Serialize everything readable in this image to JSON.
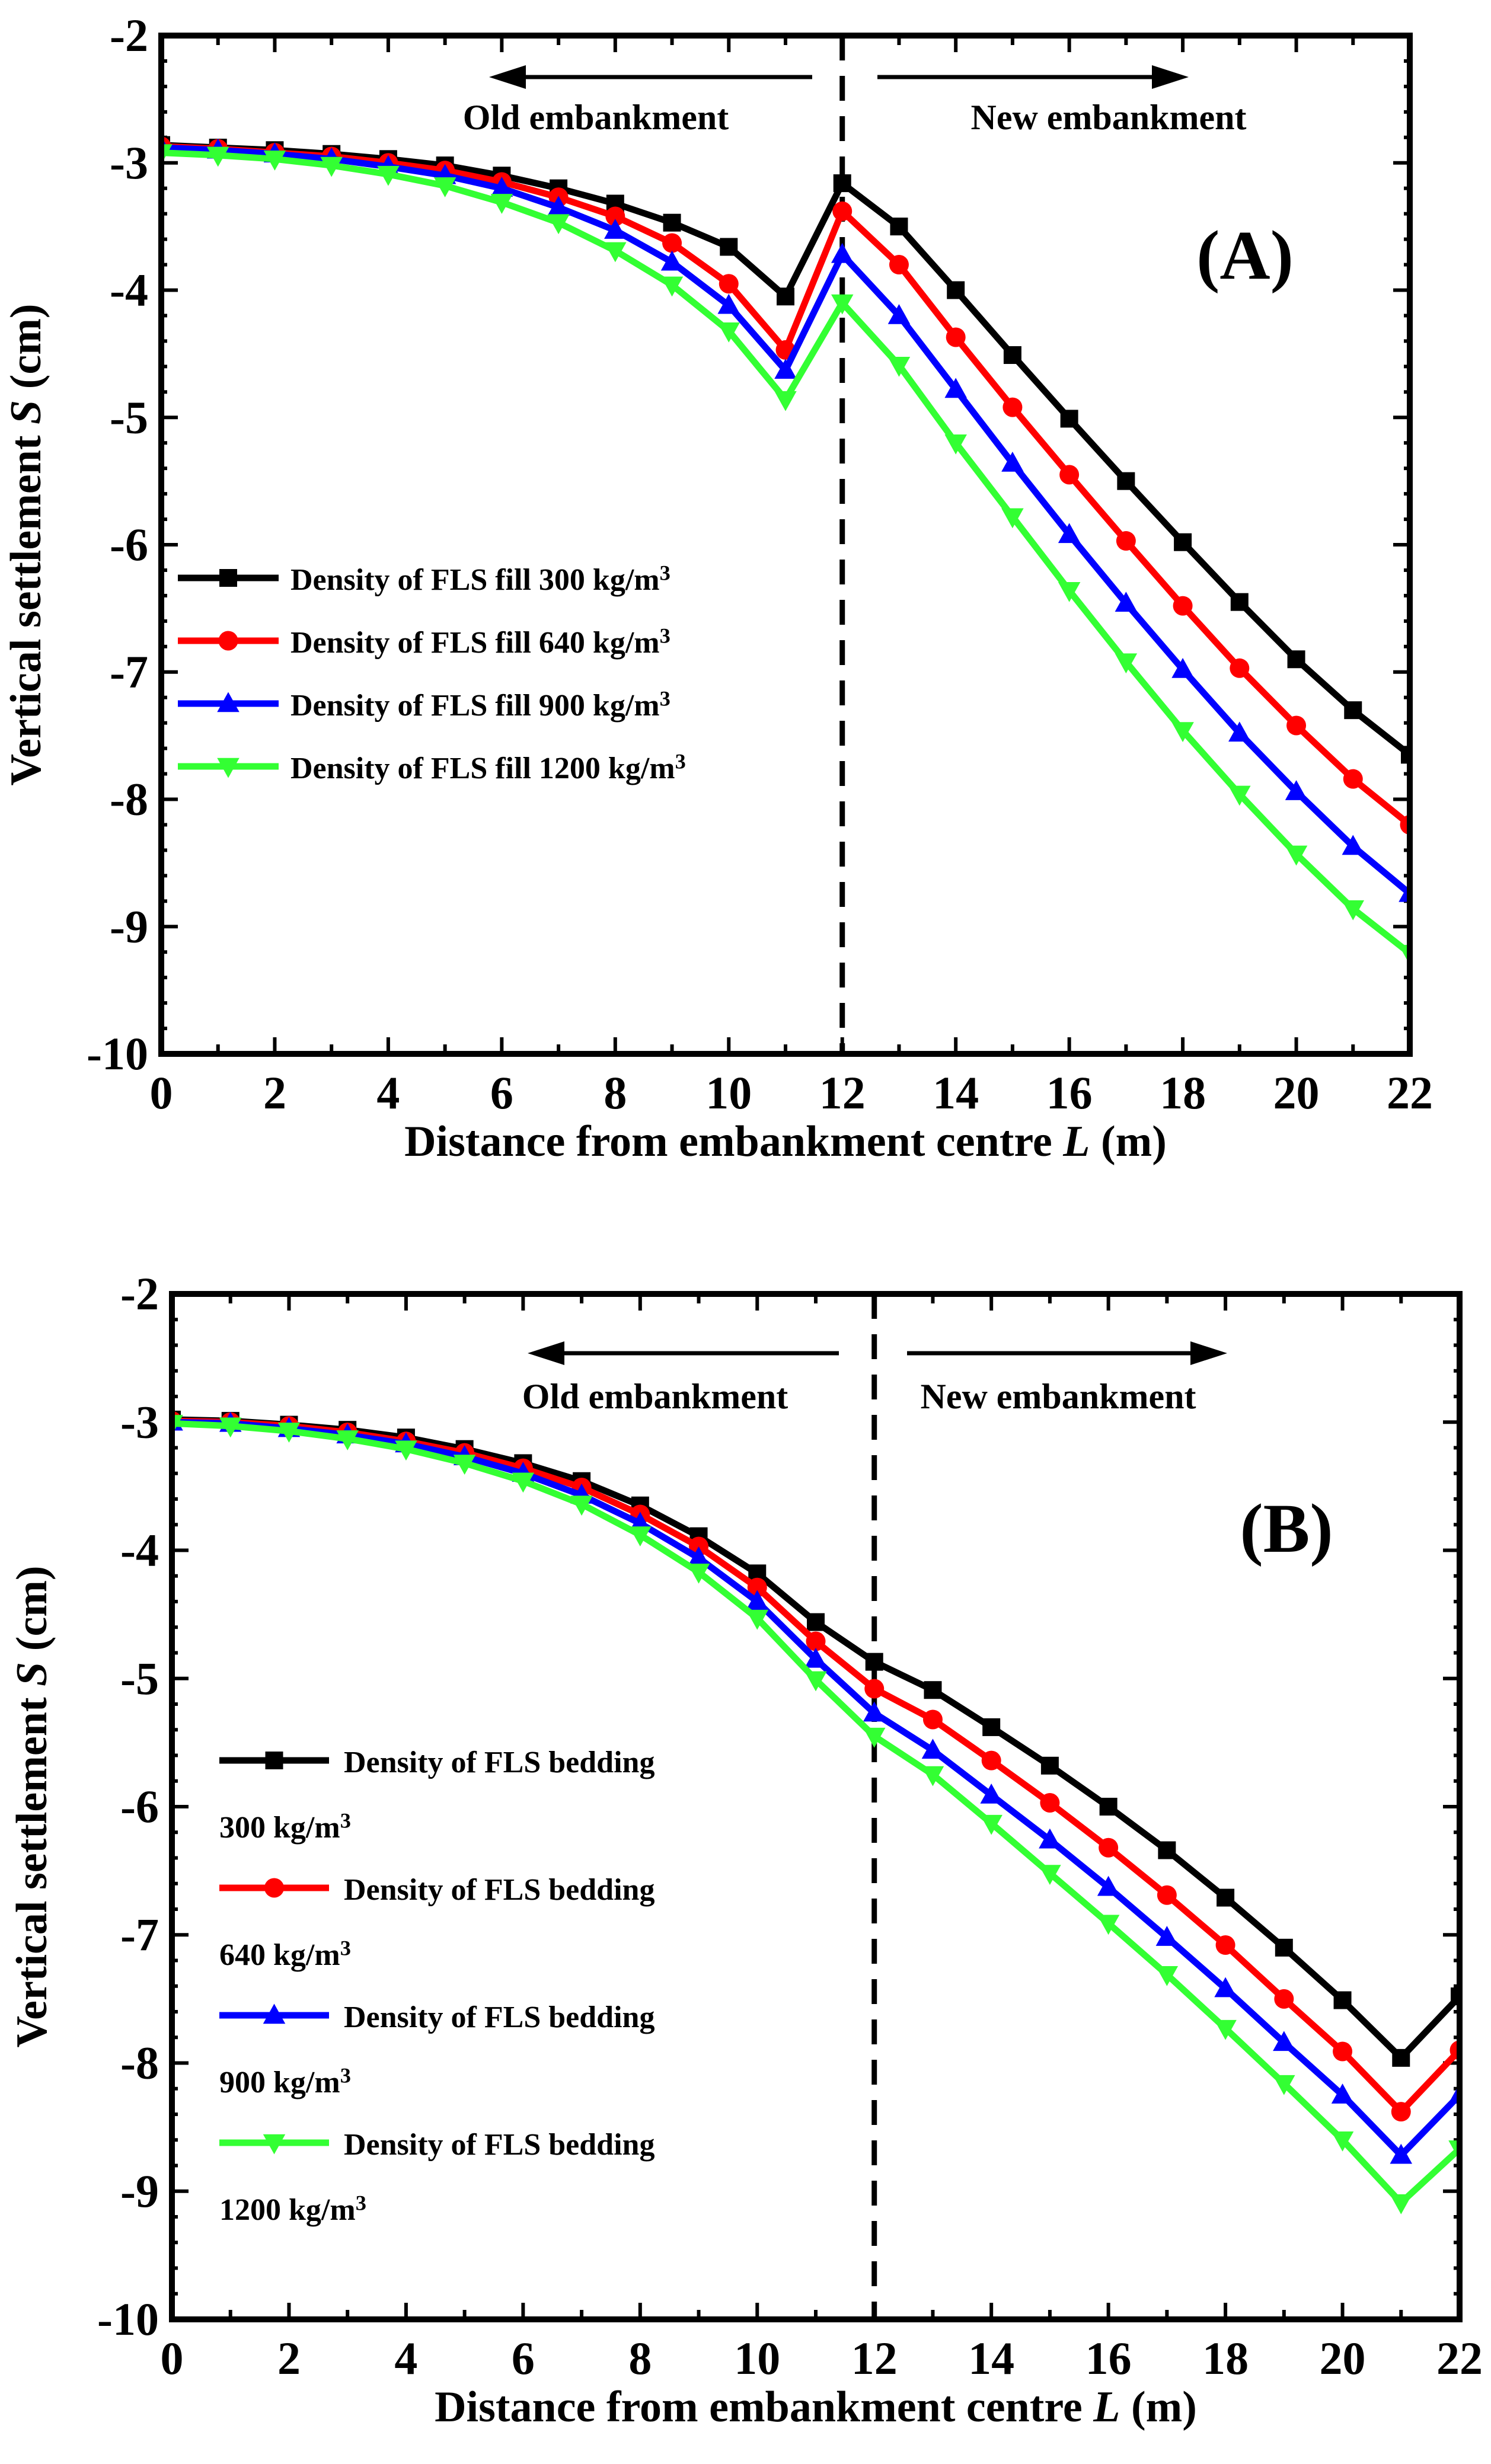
{
  "figure": {
    "panels": [
      {
        "id": "A",
        "panel_label": "(A)",
        "old_label": "Old embankment",
        "new_label": "New embankment"
      },
      {
        "id": "B",
        "panel_label": "(B)",
        "old_label": "Old embankment",
        "new_label": "New embankment"
      }
    ]
  },
  "chart_data": [
    {
      "type": "line",
      "title": "",
      "xlabel": "Distance from embankment centre L (m)",
      "ylabel": "Vertical settlement S (cm)",
      "xlim": [
        0,
        22
      ],
      "ylim": [
        -10,
        -2
      ],
      "xticks": [
        "0",
        "2",
        "4",
        "6",
        "8",
        "10",
        "12",
        "14",
        "16",
        "18",
        "20",
        "22"
      ],
      "yticks": [
        "-10",
        "-9",
        "-8",
        "-7",
        "-6",
        "-5",
        "-4",
        "-3",
        "-2"
      ],
      "grid": false,
      "legend_position": "left",
      "reference_line": {
        "x": 12,
        "style": "dashed"
      },
      "x": [
        0,
        1,
        2,
        3,
        4,
        5,
        6,
        7,
        8,
        9,
        10,
        11,
        12,
        13,
        14,
        15,
        16,
        17,
        18,
        19,
        20,
        21,
        22
      ],
      "series": [
        {
          "name": "Density of FLS fill 300 kg/m³",
          "legend_lines": [
            "Density of FLS fill 300 kg/m³"
          ],
          "color": "#000000",
          "marker": "square",
          "values": [
            -2.86,
            -2.88,
            -2.9,
            -2.93,
            -2.97,
            -3.02,
            -3.1,
            -3.2,
            -3.32,
            -3.47,
            -3.66,
            -4.05,
            -3.16,
            -3.5,
            -4.0,
            -4.51,
            -5.01,
            -5.5,
            -5.98,
            -6.45,
            -6.9,
            -7.3,
            -7.65
          ]
        },
        {
          "name": "Density of FLS fill 640 kg/m³",
          "legend_lines": [
            "Density of FLS fill 640 kg/m³"
          ],
          "color": "#ff0000",
          "marker": "circle",
          "values": [
            -2.87,
            -2.89,
            -2.92,
            -2.95,
            -3.0,
            -3.06,
            -3.15,
            -3.27,
            -3.42,
            -3.63,
            -3.95,
            -4.47,
            -3.38,
            -3.8,
            -4.37,
            -4.92,
            -5.45,
            -5.97,
            -6.48,
            -6.97,
            -7.42,
            -7.84,
            -8.2
          ]
        },
        {
          "name": "Density of FLS fill 900 kg/m³",
          "legend_lines": [
            "Density of FLS fill 900 kg/m³"
          ],
          "color": "#0000ff",
          "marker": "triangle-up",
          "values": [
            -2.88,
            -2.9,
            -2.93,
            -2.97,
            -3.03,
            -3.1,
            -3.2,
            -3.35,
            -3.53,
            -3.78,
            -4.12,
            -4.63,
            -3.72,
            -4.2,
            -4.78,
            -5.36,
            -5.92,
            -6.46,
            -6.98,
            -7.48,
            -7.94,
            -8.37,
            -8.74
          ]
        },
        {
          "name": "Density of FLS fill 1200 kg/m³",
          "legend_lines": [
            "Density of FLS fill 1200 kg/m³"
          ],
          "color": "#33ff33",
          "marker": "triangle-down",
          "values": [
            -2.92,
            -2.94,
            -2.97,
            -3.02,
            -3.09,
            -3.18,
            -3.31,
            -3.47,
            -3.69,
            -3.96,
            -4.32,
            -4.86,
            -4.1,
            -4.59,
            -5.2,
            -5.78,
            -6.36,
            -6.92,
            -7.46,
            -7.96,
            -8.43,
            -8.86,
            -9.21
          ]
        }
      ]
    },
    {
      "type": "line",
      "title": "",
      "xlabel": "Distance from embankment centre L (m)",
      "ylabel": "Vertical settlement S (cm)",
      "xlim": [
        0,
        22
      ],
      "ylim": [
        -10,
        -2
      ],
      "xticks": [
        "0",
        "2",
        "4",
        "6",
        "8",
        "10",
        "12",
        "14",
        "16",
        "18",
        "20",
        "22"
      ],
      "yticks": [
        "-10",
        "-9",
        "-8",
        "-7",
        "-6",
        "-5",
        "-4",
        "-3",
        "-2"
      ],
      "grid": false,
      "legend_position": "left",
      "reference_line": {
        "x": 12,
        "style": "dashed"
      },
      "x": [
        0,
        1,
        2,
        3,
        4,
        5,
        6,
        7,
        8,
        9,
        10,
        11,
        12,
        13,
        14,
        15,
        16,
        17,
        18,
        19,
        20,
        21,
        22
      ],
      "series": [
        {
          "name": "Density of FLS bedding 300 kg/m³",
          "legend_lines": [
            "Density of FLS bedding",
            "300 kg/m³"
          ],
          "color": "#000000",
          "marker": "square",
          "values": [
            -2.98,
            -2.99,
            -3.02,
            -3.06,
            -3.12,
            -3.21,
            -3.32,
            -3.46,
            -3.65,
            -3.89,
            -4.18,
            -4.56,
            -4.87,
            -5.09,
            -5.38,
            -5.68,
            -6.0,
            -6.34,
            -6.71,
            -7.1,
            -7.51,
            -7.96,
            -7.48
          ]
        },
        {
          "name": "Density of FLS bedding 640 kg/m³",
          "legend_lines": [
            "Density of FLS bedding",
            "640 kg/m³"
          ],
          "color": "#ff0000",
          "marker": "circle",
          "values": [
            -2.99,
            -3.0,
            -3.03,
            -3.08,
            -3.15,
            -3.24,
            -3.36,
            -3.51,
            -3.72,
            -3.97,
            -4.29,
            -4.71,
            -5.08,
            -5.32,
            -5.64,
            -5.97,
            -6.32,
            -6.69,
            -7.08,
            -7.5,
            -7.91,
            -8.38,
            -7.9
          ]
        },
        {
          "name": "Density of FLS bedding 900 kg/m³",
          "legend_lines": [
            "Density of FLS bedding",
            "900 kg/m³"
          ],
          "color": "#0000ff",
          "marker": "triangle-up",
          "values": [
            -3.0,
            -3.01,
            -3.05,
            -3.1,
            -3.17,
            -3.27,
            -3.4,
            -3.57,
            -3.79,
            -4.06,
            -4.4,
            -4.85,
            -5.27,
            -5.56,
            -5.91,
            -6.26,
            -6.63,
            -7.02,
            -7.42,
            -7.84,
            -8.25,
            -8.72,
            -8.25
          ]
        },
        {
          "name": "Density of FLS bedding 1200 kg/m³",
          "legend_lines": [
            "Density of FLS bedding",
            "1200 kg/m³"
          ],
          "color": "#33ff33",
          "marker": "triangle-down",
          "values": [
            -3.01,
            -3.03,
            -3.07,
            -3.13,
            -3.21,
            -3.32,
            -3.46,
            -3.64,
            -3.88,
            -4.17,
            -4.53,
            -5.01,
            -5.45,
            -5.75,
            -6.13,
            -6.52,
            -6.91,
            -7.31,
            -7.73,
            -8.16,
            -8.6,
            -9.09,
            -8.67
          ]
        }
      ]
    }
  ]
}
